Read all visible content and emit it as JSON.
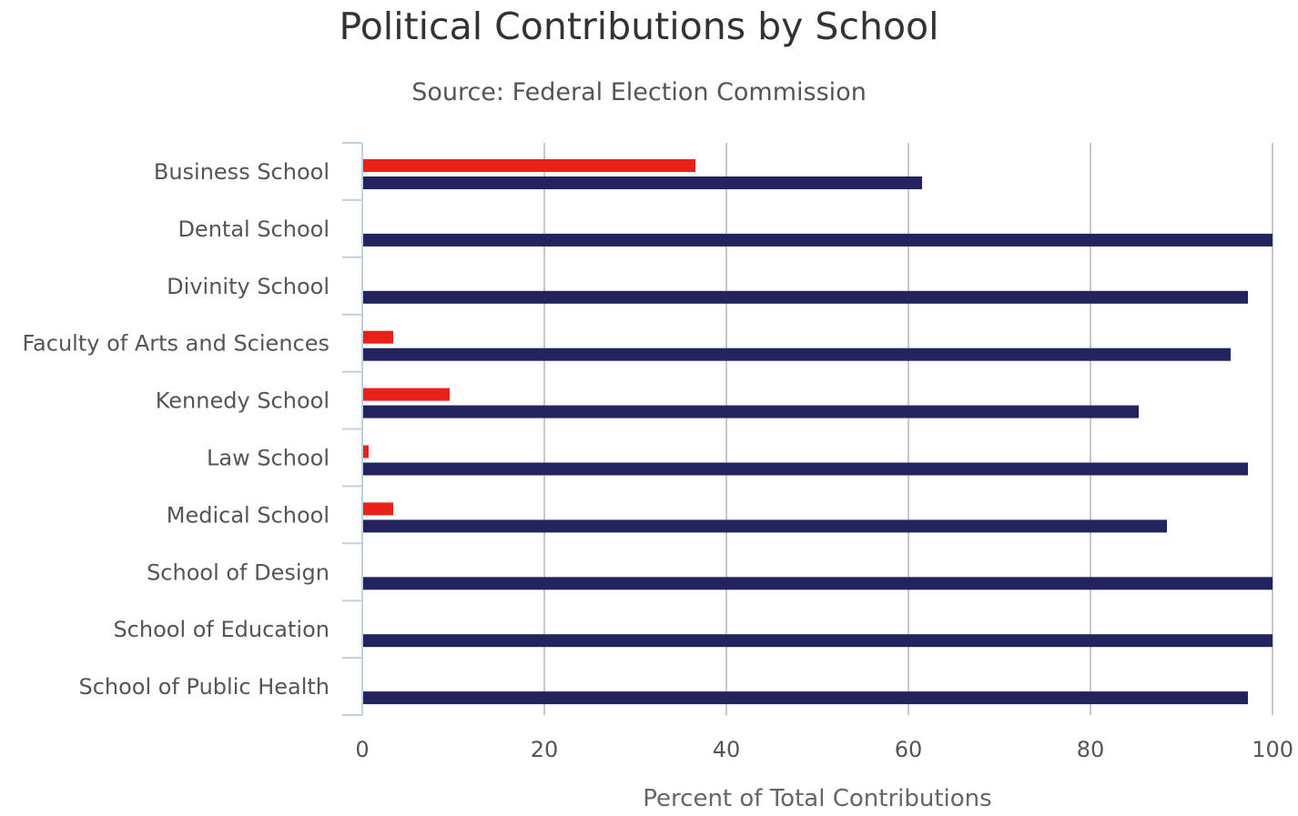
{
  "chart_data": {
    "type": "bar",
    "orientation": "horizontal",
    "title": "Political Contributions by School",
    "subtitle": "Source: Federal Election Commission",
    "xlabel": "Percent of Total Contributions",
    "ylabel": "",
    "xlim": [
      0,
      100
    ],
    "xticks": [
      "0",
      "20",
      "40",
      "60",
      "80",
      "100"
    ],
    "categories": [
      "Business School",
      "Dental School",
      "Divinity School",
      "Faculty of Arts and Sciences",
      "Kennedy School",
      "Law School",
      "Medical School",
      "School of Design",
      "School of Education",
      "School of Public Health"
    ],
    "series": [
      {
        "color": "#e8211b",
        "values": [
          36.6,
          0,
          0,
          3.4,
          9.6,
          0.7,
          3.4,
          0,
          0,
          0
        ]
      },
      {
        "color": "#23235f",
        "values": [
          61.5,
          100,
          97.3,
          95.4,
          85.3,
          97.3,
          88.4,
          100,
          100,
          97.3
        ]
      }
    ],
    "grid": true,
    "legend": "none"
  }
}
